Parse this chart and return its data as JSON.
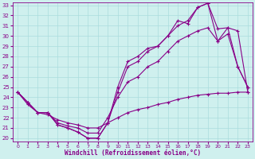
{
  "xlabel": "Windchill (Refroidissement éolien,°C)",
  "xlim": [
    -0.5,
    23.5
  ],
  "ylim": [
    19.7,
    33.3
  ],
  "yticks": [
    20,
    21,
    22,
    23,
    24,
    25,
    26,
    27,
    28,
    29,
    30,
    31,
    32,
    33
  ],
  "xticks": [
    0,
    1,
    2,
    3,
    4,
    5,
    6,
    7,
    8,
    9,
    10,
    11,
    12,
    13,
    14,
    15,
    16,
    17,
    18,
    19,
    20,
    21,
    22,
    23
  ],
  "bg_color": "#cff0ee",
  "line_color": "#880088",
  "grid_color": "#aadddd",
  "lines": [
    {
      "x": [
        0,
        1,
        2,
        3,
        4,
        5,
        6,
        7,
        8,
        9,
        10,
        11,
        12,
        13,
        14,
        15,
        16,
        17,
        18,
        19,
        20,
        21,
        22,
        23
      ],
      "y": [
        24.5,
        23.5,
        22.5,
        22.5,
        21.3,
        21.0,
        20.6,
        20.0,
        20.0,
        21.5,
        25.0,
        27.5,
        28.0,
        28.8,
        29.0,
        30.0,
        31.5,
        31.2,
        32.8,
        33.2,
        30.7,
        30.8,
        27.0,
        25.0
      ]
    },
    {
      "x": [
        0,
        1,
        2,
        3,
        4,
        5,
        6,
        7,
        8,
        9,
        10,
        11,
        12,
        13,
        14,
        15,
        16,
        17,
        18,
        19,
        20,
        21,
        22,
        23
      ],
      "y": [
        24.5,
        23.5,
        22.5,
        22.5,
        21.3,
        21.0,
        20.6,
        20.0,
        20.0,
        21.5,
        24.5,
        27.0,
        27.5,
        28.5,
        29.0,
        30.0,
        31.0,
        31.5,
        32.8,
        33.2,
        29.5,
        30.8,
        30.5,
        24.5
      ]
    },
    {
      "x": [
        0,
        1,
        2,
        3,
        4,
        5,
        6,
        7,
        8,
        9,
        10,
        11,
        12,
        13,
        14,
        15,
        16,
        17,
        18,
        19,
        20,
        21,
        22,
        23
      ],
      "y": [
        24.5,
        23.5,
        22.5,
        22.5,
        21.5,
        21.2,
        21.0,
        20.5,
        20.5,
        22.0,
        24.0,
        25.5,
        26.0,
        27.0,
        27.5,
        28.5,
        29.5,
        30.0,
        30.5,
        30.8,
        29.5,
        30.2,
        27.0,
        25.0
      ]
    },
    {
      "x": [
        0,
        1,
        2,
        3,
        4,
        5,
        6,
        7,
        8,
        9,
        10,
        11,
        12,
        13,
        14,
        15,
        16,
        17,
        18,
        19,
        20,
        21,
        22,
        23
      ],
      "y": [
        24.5,
        23.3,
        22.5,
        22.3,
        21.8,
        21.5,
        21.3,
        21.0,
        21.0,
        21.5,
        22.0,
        22.5,
        22.8,
        23.0,
        23.3,
        23.5,
        23.8,
        24.0,
        24.2,
        24.3,
        24.4,
        24.4,
        24.5,
        24.5
      ]
    }
  ],
  "figsize": [
    3.2,
    2.0
  ],
  "dpi": 100
}
